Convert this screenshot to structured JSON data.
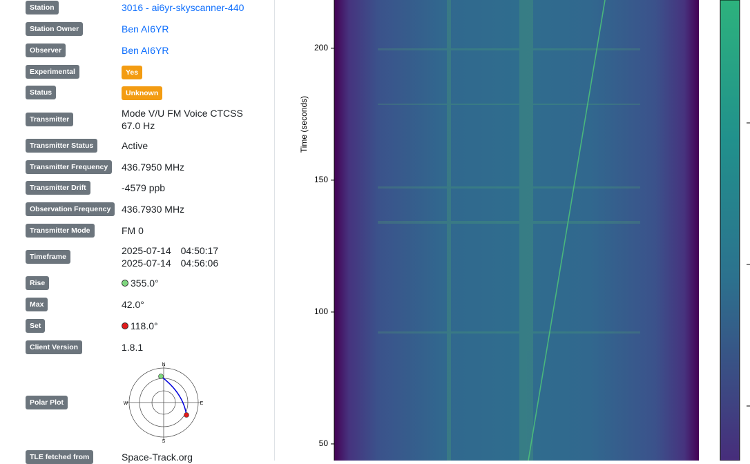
{
  "rows": [
    {
      "label": "Station",
      "value": "3016 - ai6yr-skyscanner-440",
      "color": "#0d6efd"
    },
    {
      "label": "Station Owner",
      "value": "Ben AI6YR",
      "color": "#0d6efd"
    },
    {
      "label": "Observer",
      "value": "Ben AI6YR",
      "color": "#0d6efd"
    },
    {
      "label": "Experimental",
      "value": "Yes",
      "badge_color": "#f39c12"
    },
    {
      "label": "Status",
      "value": "Unknown",
      "badge_color": "#f39c12"
    },
    {
      "label": "Transmitter",
      "value": "Mode V/U FM Voice CTCSS 67.0 Hz"
    },
    {
      "label": "Transmitter Status",
      "value": "Active"
    },
    {
      "label": "Transmitter Frequency",
      "value": "436.7950 MHz"
    },
    {
      "label": "Transmitter Drift",
      "value": "-4579 ppb"
    },
    {
      "label": "Observation Frequency",
      "value": "436.7930 MHz"
    },
    {
      "label": "Transmitter Mode",
      "value": "FM 0"
    },
    {
      "label": "Timeframe",
      "lines": [
        [
          "2025-07-14",
          "04:50:17"
        ],
        [
          "2025-07-14",
          "04:56:06"
        ]
      ]
    },
    {
      "label": "Rise",
      "value": "355.0°",
      "marker_color": "#7ed67e"
    },
    {
      "label": "Max",
      "value": "42.0°"
    },
    {
      "label": "Set",
      "value": "118.0°",
      "marker_color": "#e01b1b"
    },
    {
      "label": "Client Version",
      "value": "1.8.1"
    },
    {
      "label": "Polar Plot",
      "polar": {
        "n": "N",
        "e": "E",
        "s": "S",
        "w": "W"
      }
    },
    {
      "label": "TLE fetched from",
      "value": "Space-Track.org"
    }
  ],
  "waterfall": {
    "axis_label": "Time (seconds)",
    "ylim": [
      43.7,
      218.3
    ],
    "yticks": [
      50,
      100,
      150,
      200
    ]
  }
}
